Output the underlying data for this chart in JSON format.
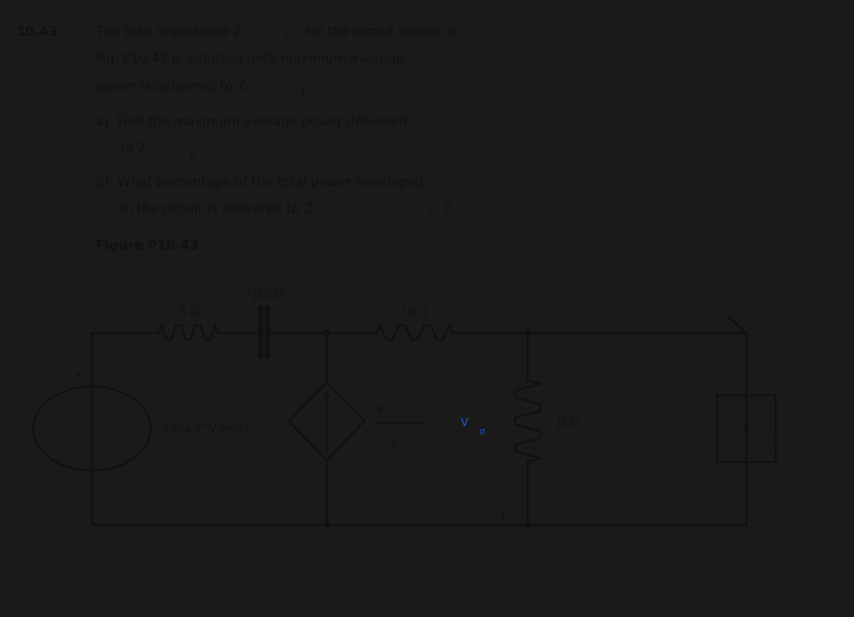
{
  "bg_color": "#1a1a1a",
  "page_bg": "#ccc9c0",
  "text_color": "#111111",
  "title_number": "10.43",
  "problem_line1": "The load impedance Z",
  "problem_line1b": "L",
  "problem_line1c": " for the circuit shown in",
  "problem_line2": "Fig. P10.43 is adjusted until maximum average",
  "problem_line3": "power is delivered to Z",
  "problem_line3b": "L",
  "problem_line3c": ".",
  "part_a1": "a)  Find the maximum average power delivered",
  "part_a2": "      to Z",
  "part_a2b": "L",
  "part_a2c": ".",
  "part_b1": "b)  What percentage of the total power developed",
  "part_b2": "      in the circuit is delivered to Z",
  "part_b2b": "L",
  "part_b2c": "?",
  "figure_label": "Figure P10.43",
  "R1_label": "5 Ω",
  "C1_label": "−j10 Ω",
  "R2_label": "10 Ω",
  "Vs_label": "250∠0° V (rms)",
  "VCCS_num": "V",
  "VCCS_num_sub": "σ",
  "VCCS_denom": "5",
  "dep_label": "V",
  "dep_label_sub": "σ",
  "impedance_label": "j5 Ω",
  "ZL_label": "Z",
  "ZL_sub": "L",
  "blue_color": "#2255cc",
  "lc": "#111111"
}
